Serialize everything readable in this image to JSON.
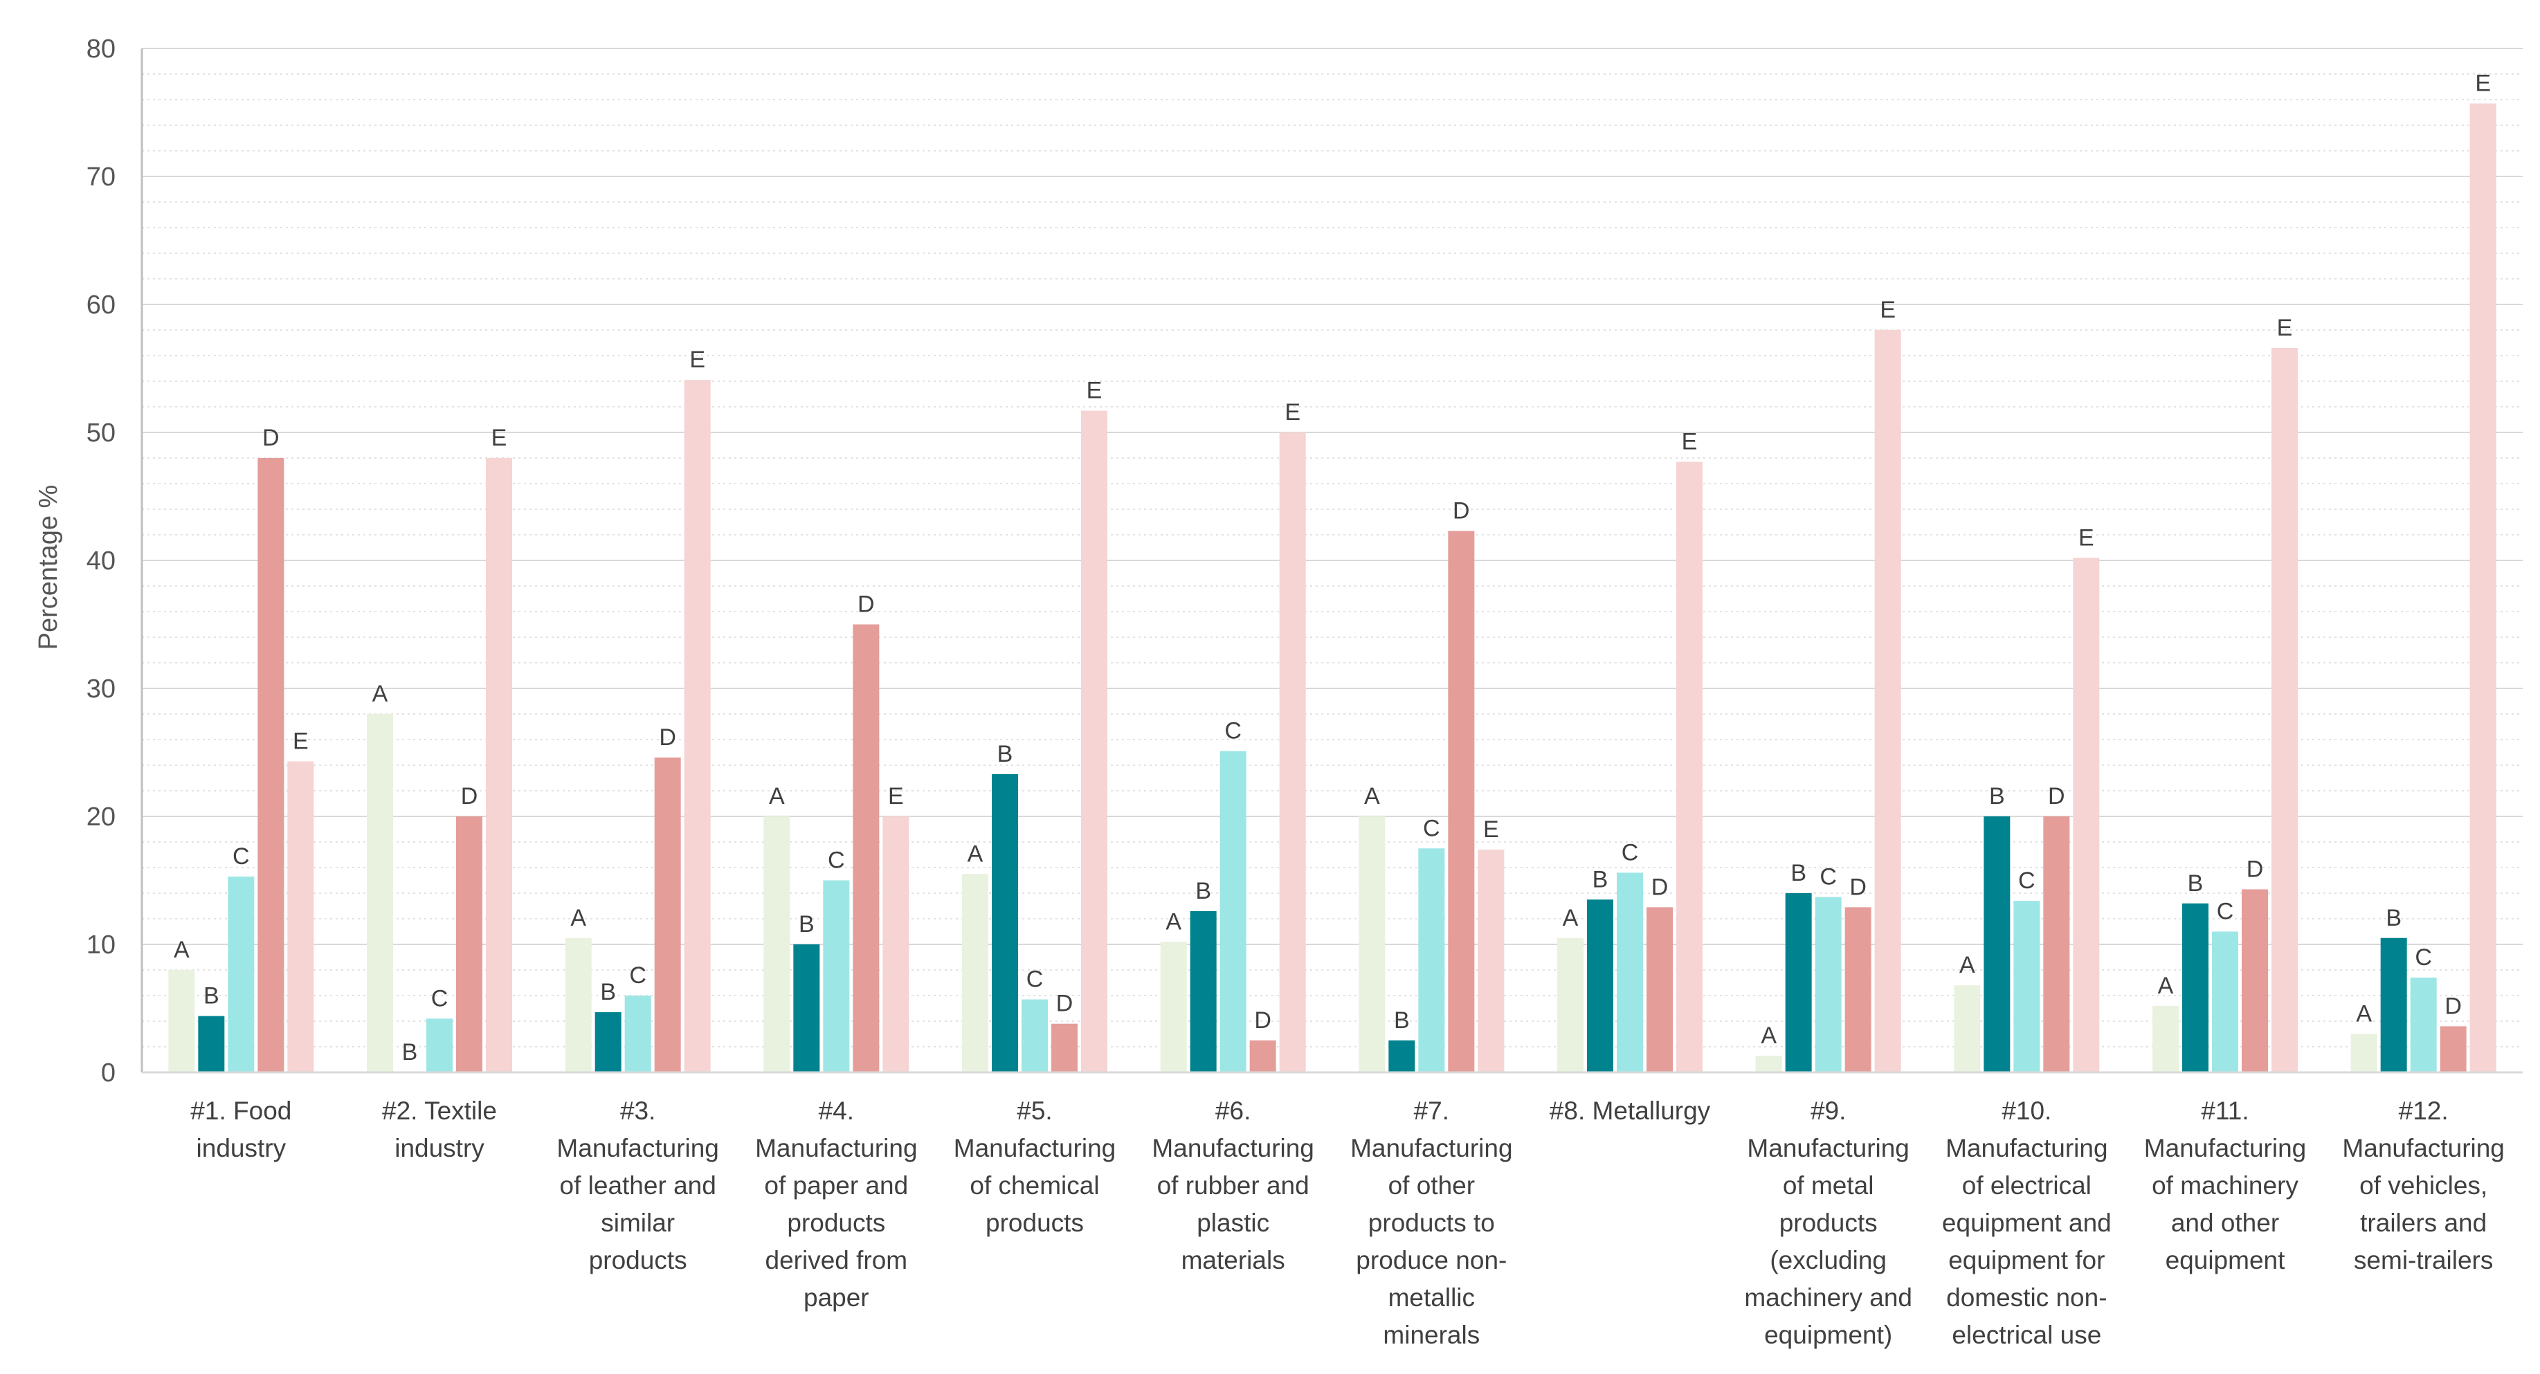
{
  "chart_data": {
    "type": "bar",
    "title": "",
    "xlabel": "",
    "ylabel": "Percentage %",
    "ylim": [
      0,
      80
    ],
    "yticks": [
      0,
      10,
      20,
      30,
      40,
      50,
      60,
      70,
      80
    ],
    "grid": true,
    "legend": "none",
    "categories": [
      [
        "#1. Food",
        "industry"
      ],
      [
        "#2. Textile",
        "industry"
      ],
      [
        "#3.",
        "Manufacturing",
        "of leather and",
        "similar",
        "products"
      ],
      [
        "#4.",
        "Manufacturing",
        "of paper and",
        "products",
        "derived from",
        "paper"
      ],
      [
        "#5.",
        "Manufacturing",
        "of chemical",
        "products"
      ],
      [
        "#6.",
        "Manufacturing",
        "of rubber and",
        "plastic",
        "materials"
      ],
      [
        "#7.",
        "Manufacturing",
        "of other",
        "products to",
        "produce non-",
        "metallic",
        "minerals"
      ],
      [
        "#8. Metallurgy"
      ],
      [
        "#9.",
        "Manufacturing",
        "of metal",
        "products",
        "(excluding",
        "machinery and",
        "equipment)"
      ],
      [
        "#10.",
        "Manufacturing",
        "of electrical",
        "equipment and",
        "equipment for",
        "domestic non-",
        "electrical use"
      ],
      [
        "#11.",
        "Manufacturing",
        "of machinery",
        "and other",
        "equipment"
      ],
      [
        "#12.",
        "Manufacturing",
        "of vehicles,",
        "trailers and",
        "semi-trailers"
      ]
    ],
    "series": [
      {
        "name": "A",
        "color": "#e9f2df",
        "values": [
          8.0,
          28.0,
          10.5,
          20.0,
          15.5,
          10.2,
          20.0,
          10.5,
          1.3,
          6.8,
          5.2,
          3.0
        ]
      },
      {
        "name": "B",
        "color": "#00838f",
        "values": [
          4.4,
          0,
          4.7,
          10.0,
          23.3,
          12.6,
          2.5,
          13.5,
          14.0,
          20.0,
          13.2,
          10.5
        ]
      },
      {
        "name": "C",
        "color": "#9de6e6",
        "values": [
          15.3,
          4.2,
          6.0,
          15.0,
          5.7,
          25.1,
          17.5,
          15.6,
          13.7,
          13.4,
          11.0,
          7.4
        ]
      },
      {
        "name": "D",
        "color": "#e59d9a",
        "values": [
          48.0,
          20.0,
          24.6,
          35.0,
          3.8,
          2.5,
          42.3,
          12.9,
          12.9,
          20.0,
          14.3,
          3.6
        ]
      },
      {
        "name": "E",
        "color": "#f5d4d3",
        "values": [
          24.3,
          48.0,
          54.1,
          20.0,
          51.7,
          50.0,
          17.4,
          47.7,
          58.0,
          40.2,
          56.6,
          75.7
        ]
      }
    ]
  }
}
